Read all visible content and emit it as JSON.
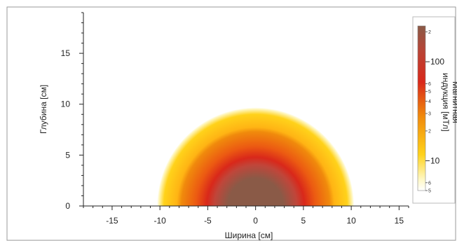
{
  "chart_data": {
    "type": "heatmap",
    "title": "",
    "xlabel": "Ширина [см]",
    "ylabel": "Глубина [см]",
    "xlim": [
      -18,
      16
    ],
    "ylim": [
      0,
      19
    ],
    "x_ticks": [
      -15,
      -10,
      -5,
      0,
      5,
      10,
      15
    ],
    "y_ticks": [
      0,
      5,
      10,
      15
    ],
    "field_extent_cm": {
      "outer_radius": 10.3,
      "inner_radius": 5
    },
    "grid": false,
    "colorbar": {
      "title_line1": "Магнитная",
      "title_line2": "индукция [мТл]",
      "scale": "log",
      "labeled_ticks": [
        "100",
        "10"
      ],
      "minor_labels": [
        "2",
        "6",
        "5",
        "4",
        "3",
        "2",
        "6",
        "5"
      ]
    }
  },
  "colors": {
    "core": "#8a5a47",
    "red": "#d9281a",
    "orange": "#f08a0c",
    "yellow": "#ffd21a",
    "pale": "#fff7c2",
    "frame": "#999999"
  }
}
